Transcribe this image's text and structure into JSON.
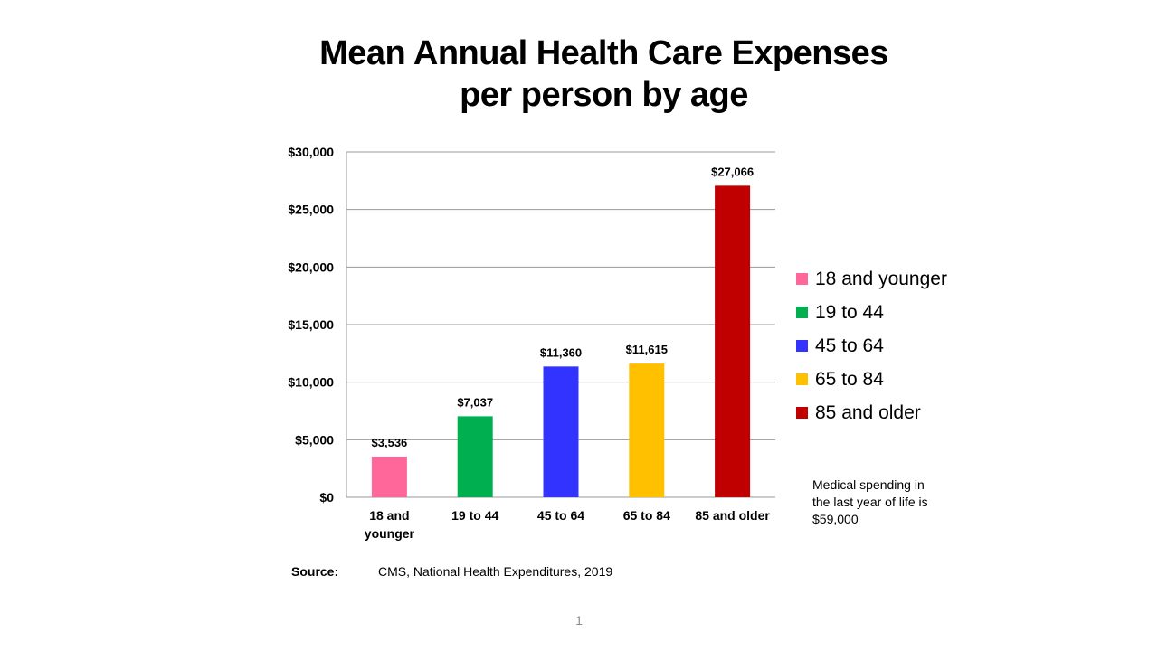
{
  "slide": {
    "title_line1": "Mean Annual Health Care Expenses",
    "title_line2": "per person by age",
    "note": "Medical spending in the last year of life is $59,000",
    "source_label": "Source:",
    "source_text": "CMS, National Health Expenditures, 2019",
    "slide_number": "1"
  },
  "chart_data": {
    "type": "bar",
    "title": "Mean Annual Health Care Expenses per person by age",
    "xlabel": "",
    "ylabel": "",
    "ylim": [
      0,
      30000
    ],
    "yticks": [
      0,
      5000,
      10000,
      15000,
      20000,
      25000,
      30000
    ],
    "ytick_labels": [
      "$0",
      "$5,000",
      "$10,000",
      "$15,000",
      "$20,000",
      "$25,000",
      "$30,000"
    ],
    "grid": true,
    "legend_position": "right",
    "categories": [
      "18 and younger",
      "19 to 44",
      "45 to 64",
      "65 to 84",
      "85 and older"
    ],
    "category_label_lines": [
      [
        "18 and",
        "younger"
      ],
      [
        "19 to 44"
      ],
      [
        "45 to 64"
      ],
      [
        "65 to 84"
      ],
      [
        "85 and older"
      ]
    ],
    "values": [
      3536,
      7037,
      11360,
      11615,
      27066
    ],
    "value_labels": [
      "$3,536",
      "$7,037",
      "$11,360",
      "$11,615",
      "$27,066"
    ],
    "colors": [
      "#ff6699",
      "#00b050",
      "#3333ff",
      "#ffc000",
      "#c00000"
    ],
    "legend": [
      "18 and younger",
      "19 to 44",
      "45 to 64",
      "65 to 84",
      "85 and older"
    ]
  }
}
